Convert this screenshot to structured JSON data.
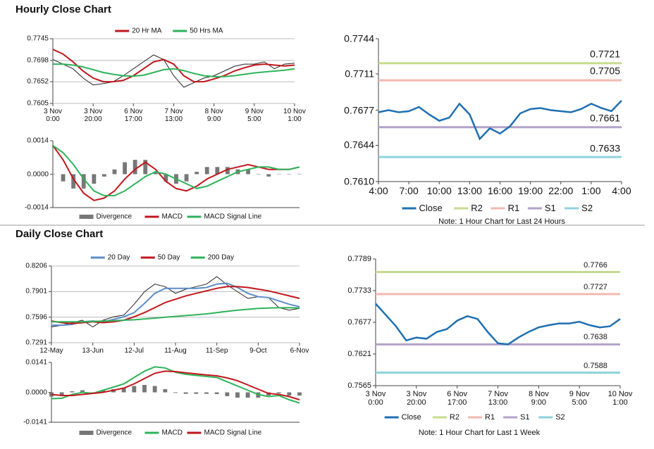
{
  "headings": [
    "Hourly Close Chart",
    "Daily Close Chart"
  ],
  "chart_data": [
    {
      "type": "line",
      "legend": "top",
      "grid": true,
      "ylim": [
        0.7605,
        0.7745
      ],
      "yticks": [
        0.7745,
        0.7698,
        0.7652,
        0.7605
      ],
      "categories": [
        "3 Nov\n0:00",
        null,
        null,
        null,
        "3 Nov\n20:00",
        null,
        null,
        null,
        "6 Nov\n17:00",
        null,
        null,
        null,
        "7 Nov\n13:00",
        null,
        null,
        null,
        "8 Nov\n9:00",
        null,
        null,
        null,
        "9 Nov\n5:00",
        null,
        null,
        null,
        "10 Nov\n1:00"
      ],
      "series": [
        {
          "color": "#222222",
          "values": [
            0.77,
            0.769,
            0.768,
            0.766,
            0.7645,
            0.7648,
            0.7652,
            0.7665,
            0.768,
            0.7695,
            0.771,
            0.77,
            0.7665,
            0.764,
            0.765,
            0.766,
            0.7665,
            0.7675,
            0.7685,
            0.769,
            0.769,
            0.7695,
            0.768,
            0.769,
            0.7692
          ]
        },
        {
          "name": "20 Hr MA",
          "color": "#c0171c",
          "values": [
            0.7722,
            0.7712,
            0.7695,
            0.7675,
            0.766,
            0.7652,
            0.7652,
            0.7655,
            0.7665,
            0.768,
            0.7695,
            0.77,
            0.769,
            0.7665,
            0.7652,
            0.7652,
            0.7658,
            0.7665,
            0.7675,
            0.7682,
            0.7688,
            0.769,
            0.7688,
            0.7686,
            0.7688
          ]
        },
        {
          "name": "50 Hrs MA",
          "color": "#2eb35a",
          "values": [
            0.769,
            0.769,
            0.7688,
            0.7684,
            0.7678,
            0.7672,
            0.7668,
            0.7665,
            0.7664,
            0.7666,
            0.7672,
            0.7678,
            0.768,
            0.7676,
            0.767,
            0.7665,
            0.7663,
            0.7663,
            0.7665,
            0.7668,
            0.7671,
            0.7673,
            0.7675,
            0.7677,
            0.768
          ]
        }
      ]
    },
    {
      "type": "line",
      "legend": "bottom",
      "grid": false,
      "ylim": [
        -0.0014,
        0.0014
      ],
      "yticks": [
        0.0014,
        {
          "value": 0,
          "label": "0.0000"
        },
        -0.0014
      ],
      "series": [
        {
          "name": "Divergence",
          "color": "#777777",
          "style": "bar",
          "values": [
            0.0,
            -0.0003,
            -0.0006,
            -0.0006,
            -0.0004,
            -0.0001,
            0.0002,
            0.0005,
            0.0006,
            0.0006,
            0.0001,
            -0.0003,
            -0.0004,
            -0.0003,
            0.0001,
            0.0003,
            0.0003,
            0.0003,
            0.0002,
            0.0002,
            0.0,
            -0.0001,
            0.0,
            0.0,
            0.0
          ]
        },
        {
          "name": "MACD",
          "color": "#c0171c",
          "values": [
            0.0012,
            0.0006,
            -0.0002,
            -0.0008,
            -0.0011,
            -0.001,
            -0.0007,
            -0.0002,
            0.0002,
            0.0005,
            0.0002,
            -0.0003,
            -0.0006,
            -0.0007,
            -0.0005,
            -0.0002,
            0.0,
            0.0002,
            0.0003,
            0.0004,
            0.0003,
            0.0002,
            0.0002,
            0.0002,
            0.0003
          ]
        },
        {
          "name": "MACD Signal Line",
          "color": "#2eb35a",
          "values": [
            0.0012,
            0.0009,
            0.0004,
            -0.0002,
            -0.0007,
            -0.0009,
            -0.0009,
            -0.0007,
            -0.0004,
            -0.0001,
            0.0001,
            0.0,
            -0.0002,
            -0.0004,
            -0.0006,
            -0.0005,
            -0.0003,
            -0.0001,
            0.0001,
            0.0002,
            0.0003,
            0.0003,
            0.0002,
            0.0002,
            0.0003
          ]
        }
      ]
    },
    {
      "type": "line",
      "legend": "bottom",
      "grid": false,
      "note": "Note: 1 Hour Chart for Last 24 Hours",
      "ylim": [
        0.761,
        0.7744
      ],
      "yticks": [
        0.7744,
        0.7711,
        0.7677,
        0.7644,
        {
          "value": 0.761,
          "label": "0.7610"
        }
      ],
      "categories": [
        "4:00",
        null,
        null,
        "7:00",
        null,
        null,
        "10:00",
        null,
        null,
        "13:00",
        null,
        null,
        "16:00",
        null,
        null,
        "19:00",
        null,
        null,
        "22:00",
        null,
        null,
        "1:00",
        null,
        null,
        "4:00"
      ],
      "series": [
        {
          "name": "Close",
          "color": "#1f6fb2",
          "values": [
            0.7675,
            0.7677,
            0.7675,
            0.7676,
            0.768,
            0.7673,
            0.7667,
            0.767,
            0.7683,
            0.7673,
            0.765,
            0.766,
            0.7655,
            0.7662,
            0.7674,
            0.7678,
            0.7679,
            0.7677,
            0.7676,
            0.7675,
            0.7678,
            0.7683,
            0.7679,
            0.7676,
            0.7686
          ]
        }
      ],
      "levels": [
        {
          "name": "R2",
          "color": "#c5dc8e",
          "value": 0.7721
        },
        {
          "name": "R1",
          "color": "#f2b9b0",
          "value": 0.7705
        },
        {
          "name": "S1",
          "color": "#b3a2c9",
          "value": 0.7661
        },
        {
          "name": "S2",
          "color": "#90d1dd",
          "value": 0.7633
        }
      ]
    },
    {
      "type": "line",
      "legend": "top",
      "grid": true,
      "ylim": [
        0.7291,
        0.8206
      ],
      "yticks": [
        0.8206,
        0.7901,
        0.7596,
        0.7291
      ],
      "categories": [
        "12-May",
        null,
        null,
        null,
        "13-Jun",
        null,
        null,
        null,
        "12-Jul",
        null,
        null,
        null,
        "11-Aug",
        null,
        null,
        null,
        "11-Sep",
        null,
        null,
        null,
        "9-Oct",
        null,
        null,
        null,
        "6-Nov"
      ],
      "series": [
        {
          "color": "#222222",
          "values": [
            0.748,
            0.75,
            0.753,
            0.756,
            0.748,
            0.756,
            0.76,
            0.762,
            0.775,
            0.79,
            0.799,
            0.796,
            0.788,
            0.793,
            0.796,
            0.799,
            0.808,
            0.798,
            0.79,
            0.782,
            0.784,
            0.783,
            0.771,
            0.768,
            0.77
          ]
        },
        {
          "name": "20 Day",
          "color": "#5b8cc8",
          "values": [
            0.75,
            0.75,
            0.751,
            0.754,
            0.755,
            0.754,
            0.757,
            0.76,
            0.765,
            0.776,
            0.788,
            0.794,
            0.794,
            0.794,
            0.794,
            0.795,
            0.799,
            0.8,
            0.795,
            0.788,
            0.784,
            0.783,
            0.779,
            0.775,
            0.772
          ]
        },
        {
          "name": "50 Day",
          "color": "#c0171c",
          "values": [
            0.755,
            0.753,
            0.752,
            0.753,
            0.754,
            0.753,
            0.754,
            0.756,
            0.76,
            0.765,
            0.771,
            0.777,
            0.781,
            0.785,
            0.788,
            0.791,
            0.794,
            0.796,
            0.796,
            0.795,
            0.793,
            0.791,
            0.788,
            0.785,
            0.782
          ]
        },
        {
          "name": "200 Day",
          "color": "#2eb35a",
          "values": [
            0.754,
            0.754,
            0.754,
            0.754,
            0.7545,
            0.755,
            0.7555,
            0.756,
            0.7565,
            0.7575,
            0.7585,
            0.7595,
            0.7605,
            0.7615,
            0.7625,
            0.7635,
            0.765,
            0.7665,
            0.768,
            0.769,
            0.77,
            0.7705,
            0.7708,
            0.7708,
            0.7705
          ]
        }
      ]
    },
    {
      "type": "line",
      "legend": "bottom",
      "grid": false,
      "ylim": [
        -0.0141,
        0.0141
      ],
      "yticks": [
        0.0141,
        {
          "value": 0,
          "label": "0.0000"
        },
        -0.0141
      ],
      "series": [
        {
          "name": "Divergence",
          "color": "#777777",
          "style": "bar",
          "values": [
            -0.002,
            -0.0013,
            0.0005,
            0.001,
            0.0,
            0.001,
            0.0015,
            0.002,
            0.003,
            0.0035,
            0.003,
            0.0015,
            -0.0003,
            -0.0007,
            -0.0007,
            -0.0007,
            -0.0008,
            -0.0018,
            -0.0025,
            -0.0025,
            -0.0025,
            -0.0015,
            -0.0005,
            -0.0015,
            -0.0015
          ]
        },
        {
          "name": "MACD",
          "color": "#2eb35a",
          "values": [
            -0.003,
            -0.0028,
            -0.001,
            0.0,
            -0.0005,
            0.001,
            0.0025,
            0.004,
            0.007,
            0.01,
            0.012,
            0.0115,
            0.0095,
            0.0085,
            0.008,
            0.0075,
            0.007,
            0.005,
            0.003,
            0.001,
            -0.001,
            -0.002,
            -0.0015,
            -0.0035,
            -0.005
          ]
        },
        {
          "name": "MACD Signal Line",
          "color": "#c0171c",
          "values": [
            -0.001,
            -0.0015,
            -0.0015,
            -0.001,
            -0.0005,
            0.0,
            0.001,
            0.002,
            0.004,
            0.0065,
            0.009,
            0.01,
            0.0098,
            0.0092,
            0.0087,
            0.0082,
            0.0078,
            0.0068,
            0.0055,
            0.0035,
            0.0015,
            -0.0005,
            -0.001,
            -0.002,
            -0.0035
          ]
        }
      ]
    },
    {
      "type": "line",
      "legend": "bottom",
      "grid": false,
      "note": "Note: 1 Hour Chart for Last 1 Week",
      "ylim": [
        0.7565,
        0.7789
      ],
      "yticks": [
        0.7789,
        0.7733,
        0.7677,
        0.7621,
        0.7565
      ],
      "categories": [
        "3 Nov\n0:00",
        null,
        null,
        null,
        "3 Nov\n20:00",
        null,
        null,
        null,
        "6 Nov\n17:00",
        null,
        null,
        null,
        "7 Nov\n13:00",
        null,
        null,
        null,
        "8 Nov\n9:00",
        null,
        null,
        null,
        "9 Nov\n5:00",
        null,
        null,
        null,
        "10 Nov\n1:00"
      ],
      "series": [
        {
          "name": "Close",
          "color": "#1f6fb2",
          "values": [
            0.771,
            0.769,
            0.767,
            0.7645,
            0.765,
            0.7648,
            0.766,
            0.7665,
            0.768,
            0.7688,
            0.7683,
            0.766,
            0.764,
            0.7638,
            0.765,
            0.766,
            0.7668,
            0.7672,
            0.7675,
            0.7675,
            0.7678,
            0.7672,
            0.7668,
            0.767,
            0.7683
          ]
        }
      ],
      "levels": [
        {
          "name": "R2",
          "color": "#c5dc8e",
          "value": 0.7766
        },
        {
          "name": "R1",
          "color": "#f2b9b0",
          "value": 0.7727
        },
        {
          "name": "S1",
          "color": "#b3a2c9",
          "value": 0.7638
        },
        {
          "name": "S2",
          "color": "#90d1dd",
          "value": 0.7588
        }
      ]
    }
  ]
}
